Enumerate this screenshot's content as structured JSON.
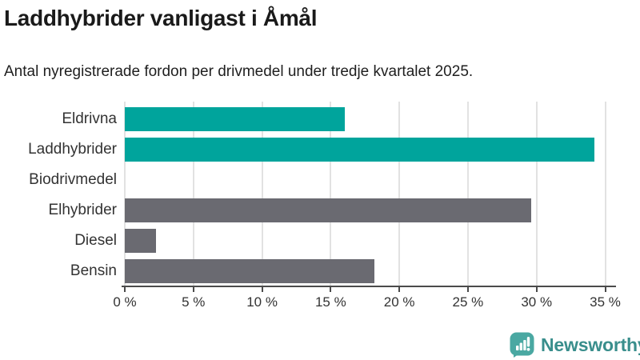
{
  "header": {
    "title": "Laddhybrider vanligast i Åmål",
    "subtitle": "Antal nyregistrerade fordon per drivmedel under tredje kvartalet 2025."
  },
  "chart_data": {
    "type": "bar",
    "orientation": "horizontal",
    "title": "Laddhybrider vanligast i Åmål",
    "subtitle": "Antal nyregistrerade fordon per drivmedel under tredje kvartalet 2025.",
    "categories": [
      "Eldrivna",
      "Laddhybrider",
      "Biodrivmedel",
      "Elhybrider",
      "Diesel",
      "Bensin"
    ],
    "values": [
      16.0,
      34.2,
      0,
      29.6,
      2.3,
      18.2
    ],
    "bar_colors": [
      "#00A49C",
      "#00A49C",
      "#00A49C",
      "#6A6A71",
      "#6A6A71",
      "#6A6A71"
    ],
    "unit": "%",
    "xlim": [
      0,
      35
    ],
    "x_ticks": [
      0,
      5,
      10,
      15,
      20,
      25,
      30,
      35
    ],
    "x_tick_labels": [
      "0 %",
      "5 %",
      "10 %",
      "15 %",
      "20 %",
      "25 %",
      "30 %",
      "35 %"
    ],
    "grid": true,
    "legend": "none"
  },
  "colors": {
    "accent_teal": "#00A49C",
    "bar_gray": "#6A6A71",
    "gridline": "#E2E2E2",
    "axis": "#4B4B4B",
    "text": "#333333",
    "logo_teal": "#4AA8A2",
    "logo_text_teal": "#398E8C"
  },
  "footer": {
    "brand": "Newsworthy",
    "logo_icon": "bar-chart-speech-bubble-icon"
  }
}
